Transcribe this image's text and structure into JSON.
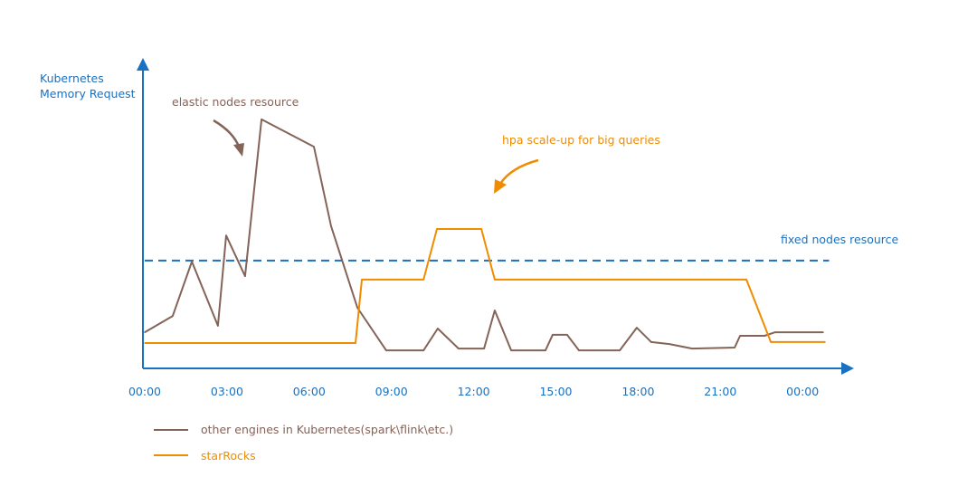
{
  "chart_data": {
    "type": "line",
    "title": "",
    "ylabel_lines": [
      "Kubernetes",
      "Memory Request"
    ],
    "xlabel": "",
    "x_unit": "hours",
    "xlim": [
      0,
      25
    ],
    "ylim": [
      0,
      100
    ],
    "y_ticks_shown": false,
    "grid": false,
    "x_tick_labels": [
      "00:00",
      "03:00",
      "06:00",
      "09:00",
      "12:00",
      "15:00",
      "18:00",
      "21:00",
      "00:00"
    ],
    "x_tick_values": [
      0,
      3,
      6,
      9,
      12,
      15,
      18,
      21,
      24
    ],
    "series": [
      {
        "name": "other engines in Kubernetes(spark\\flink\\etc.)",
        "color": "#846358",
        "x": [
          0,
          1.02,
          1.72,
          2.67,
          2.97,
          3.66,
          4.26,
          6.17,
          6.8,
          7.76,
          8.81,
          10.17,
          10.69,
          11.45,
          12.38,
          12.77,
          13.37,
          14.62,
          14.88,
          15.41,
          15.84,
          17.33,
          17.95,
          18.48,
          19.14,
          19.97,
          21.52,
          21.72,
          22.61,
          23.0,
          24.75
        ],
        "y": [
          14.4,
          20.9,
          42.6,
          17,
          53,
          36.8,
          99.3,
          88.4,
          56.7,
          24.2,
          7.2,
          7.2,
          15.9,
          7.9,
          7.9,
          23.1,
          7.2,
          7.2,
          13.4,
          13.4,
          7.2,
          7.2,
          16.2,
          10.5,
          9.7,
          7.9,
          8.3,
          13,
          13,
          14.4,
          14.4
        ]
      },
      {
        "name": "starRocks",
        "color": "#f08c00",
        "x": [
          0,
          7.69,
          7.92,
          10.17,
          10.66,
          12.28,
          12.77,
          21.95,
          22.84,
          24.82
        ],
        "y": [
          10.1,
          10.1,
          35.4,
          35.4,
          55.6,
          55.6,
          35.4,
          35.4,
          10.5,
          10.5
        ]
      }
    ],
    "reference_line": {
      "label": "fixed nodes resource",
      "y": 43,
      "style": "dashed",
      "color": "#1971c2"
    },
    "annotations": [
      {
        "text": "elastic nodes resource",
        "color": "#846358"
      },
      {
        "text": "hpa scale-up for big queries",
        "color": "#f08c00"
      }
    ],
    "legend": {
      "placement": "bottom-left"
    },
    "axis_color": "#1971c2"
  }
}
